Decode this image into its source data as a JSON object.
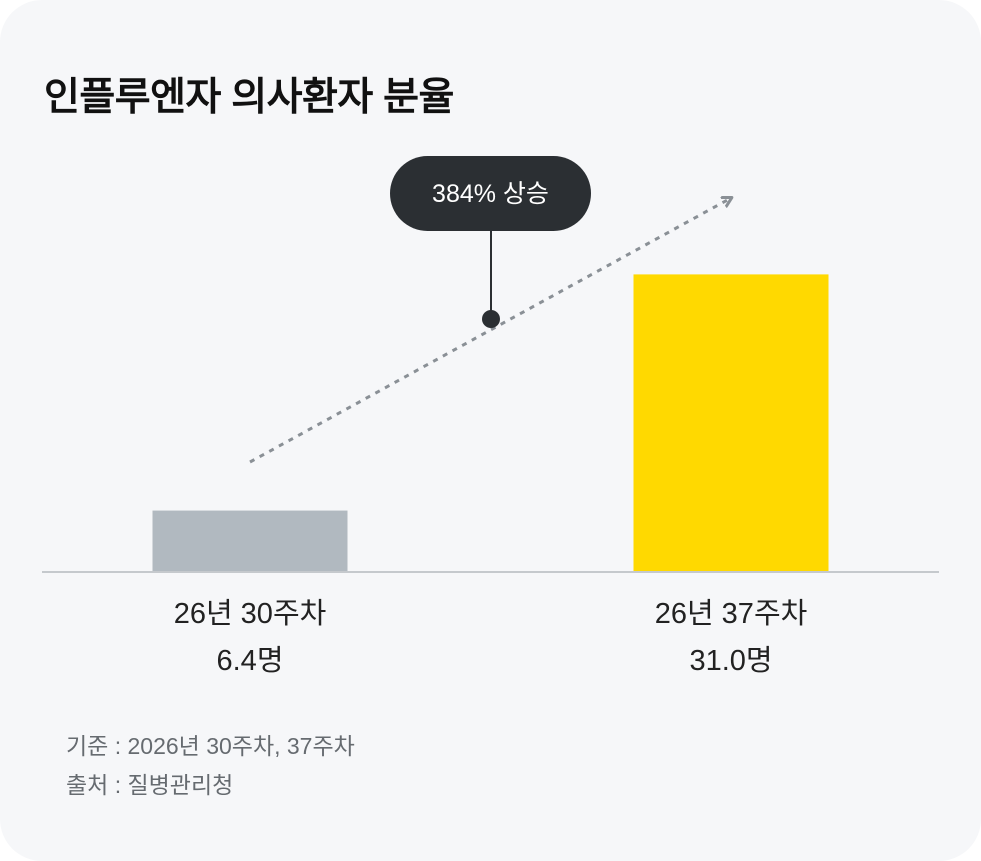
{
  "title": "인플루엔자 의사환자 분율",
  "chart_data": {
    "type": "bar",
    "categories": [
      "26년 30주차",
      "26년 37주차"
    ],
    "values": [
      6.4,
      31.0
    ],
    "value_labels": [
      "6.4명",
      "31.0명"
    ],
    "bar_colors": [
      "#b1b9c0",
      "#ffd900"
    ],
    "annotation": "384% 상승",
    "trend_arrow": true,
    "grid": false,
    "legend": "none",
    "xlabel": "",
    "ylabel": ""
  },
  "footer": {
    "basis": "기준 : 2026년 30주차, 37주차",
    "source": "출처 : 질병관리청"
  },
  "colors": {
    "card_background": "#f6f7f9",
    "callout_background": "#2b2f33",
    "baseline": "#c5c9cd",
    "trend_line": "#8a9096",
    "text_primary": "#111111",
    "text_secondary": "#666b70"
  }
}
